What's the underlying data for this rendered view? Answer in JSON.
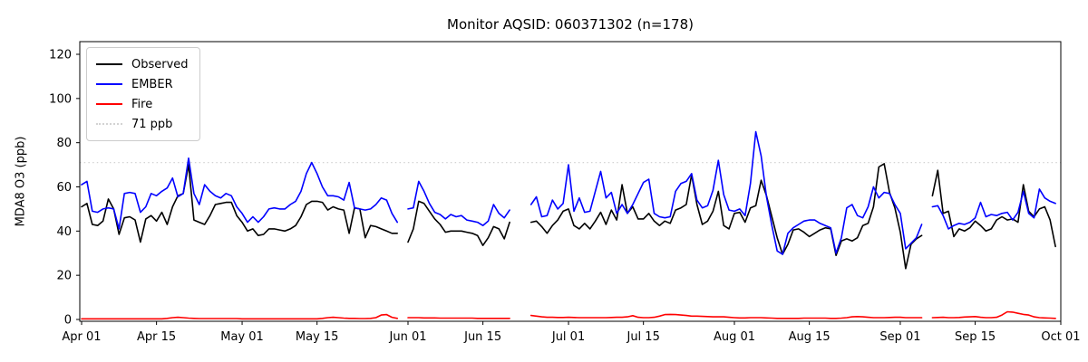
{
  "title": "Monitor AQSID: 060371302 (n=178)",
  "chart_data": {
    "type": "line",
    "title": "Monitor AQSID: 060371302 (n=178)",
    "xlabel": "",
    "ylabel": "MDA8 O3 (ppb)",
    "ylim": [
      0,
      126
    ],
    "y_ticks": [
      0,
      20,
      40,
      60,
      80,
      100,
      120
    ],
    "x_ticks": [
      {
        "label": "Apr 01",
        "day": 0
      },
      {
        "label": "Apr 15",
        "day": 14
      },
      {
        "label": "May 01",
        "day": 30
      },
      {
        "label": "May 15",
        "day": 44
      },
      {
        "label": "Jun 01",
        "day": 61
      },
      {
        "label": "Jun 15",
        "day": 75
      },
      {
        "label": "Jul 01",
        "day": 91
      },
      {
        "label": "Jul 15",
        "day": 105
      },
      {
        "label": "Aug 01",
        "day": 122
      },
      {
        "label": "Aug 15",
        "day": 136
      },
      {
        "label": "Sep 01",
        "day": 153
      },
      {
        "label": "Sep 15",
        "day": 167
      },
      {
        "label": "Oct 01",
        "day": 183
      }
    ],
    "n_days": 183,
    "grid": false,
    "legend_position": "upper left",
    "threshold": {
      "value": 71,
      "label": "71 ppb",
      "color": "#d3d3d3",
      "style": "dotted"
    },
    "legend_items": [
      {
        "label": "Observed",
        "color": "#000000",
        "style": "solid"
      },
      {
        "label": "EMBER",
        "color": "#0000ff",
        "style": "solid"
      },
      {
        "label": "Fire",
        "color": "#ff0000",
        "style": "solid"
      },
      {
        "label": "71 ppb",
        "color": "#d3d3d3",
        "style": "dotted"
      }
    ],
    "series": [
      {
        "name": "Observed",
        "color": "#000000",
        "values": [
          51,
          52.5,
          43,
          42.5,
          44.5,
          54.5,
          50,
          38.5,
          46,
          46.5,
          45,
          35,
          45.5,
          47,
          44.5,
          48.5,
          43,
          51,
          56,
          57,
          70,
          45,
          44,
          43,
          47,
          52,
          52.5,
          53,
          53,
          47,
          44,
          40,
          41,
          38,
          38.5,
          41,
          41,
          40.5,
          40,
          41,
          42.5,
          46.5,
          52,
          53.5,
          53.5,
          53,
          49.5,
          51,
          50,
          49.5,
          39,
          50.5,
          50,
          37,
          42.5,
          42,
          41,
          40,
          39,
          39,
          null,
          35,
          41,
          53.5,
          52.5,
          49,
          45.5,
          43,
          39.5,
          40,
          40,
          40,
          39.5,
          39,
          38,
          33.5,
          37,
          42,
          41,
          36.5,
          44,
          null,
          null,
          null,
          44,
          44.5,
          42,
          39,
          42.5,
          45,
          49,
          50,
          42.5,
          41,
          43.5,
          41,
          44.5,
          48.5,
          43,
          49.5,
          45,
          61,
          48,
          51,
          45.5,
          45.5,
          48,
          44.5,
          42.5,
          44.5,
          43.5,
          49.5,
          50.5,
          52,
          65.5,
          52,
          43,
          44.5,
          49,
          58,
          42.5,
          41,
          48,
          48.5,
          44,
          50.5,
          51.5,
          63,
          56,
          46.5,
          37,
          29.5,
          34,
          40.5,
          41,
          39.5,
          37.5,
          39,
          40.5,
          41.5,
          41,
          29,
          35.5,
          36.5,
          35.5,
          37,
          42.5,
          43.5,
          51,
          69,
          70.5,
          57.5,
          50.5,
          39.5,
          23,
          34,
          36.5,
          38,
          null,
          56,
          67.5,
          48,
          49,
          37.5,
          41,
          40,
          41.5,
          44.5,
          42.5,
          40,
          41,
          45,
          46.5,
          45,
          45.5,
          44,
          61,
          49,
          46.5,
          50,
          51,
          45,
          33
        ]
      },
      {
        "name": "EMBER",
        "color": "#0000ff",
        "values": [
          61,
          62.5,
          49,
          48.5,
          50,
          50.5,
          50,
          41,
          57,
          57.5,
          57,
          48.5,
          51,
          57,
          56,
          58,
          59.5,
          64,
          55.5,
          57,
          73,
          57,
          52,
          61,
          58,
          56,
          55,
          57,
          56,
          51,
          48,
          44,
          46.5,
          44,
          46.5,
          50,
          50.5,
          50,
          50,
          52,
          53.5,
          58,
          66,
          71,
          66,
          60,
          56,
          56,
          55.5,
          54,
          62,
          50.5,
          50,
          49.5,
          50,
          52,
          55,
          54,
          48,
          44,
          null,
          50,
          50.5,
          62.5,
          58,
          52.5,
          48.5,
          47.5,
          45.5,
          47.5,
          46.5,
          47,
          45,
          44.5,
          44,
          42.5,
          44.5,
          52,
          48,
          46,
          49.5,
          null,
          null,
          null,
          52,
          55.5,
          46.5,
          47,
          54,
          50,
          52.5,
          70,
          49,
          55,
          48.5,
          49,
          58,
          67,
          55,
          57.5,
          48,
          52,
          48,
          52,
          57,
          62,
          63.5,
          48,
          46.5,
          46,
          46.5,
          58,
          61.5,
          62.5,
          66,
          54,
          50.5,
          51.5,
          58.5,
          72,
          56.5,
          49.5,
          49,
          50,
          47,
          61.5,
          85,
          74,
          55.5,
          42.5,
          31,
          29.5,
          39,
          41.5,
          43,
          44.5,
          45,
          45,
          43.5,
          42.5,
          41.5,
          30,
          37,
          50.5,
          52,
          47,
          46,
          51,
          60,
          55,
          57.5,
          57,
          52,
          48,
          32,
          34.5,
          37,
          43,
          null,
          51,
          51.5,
          47,
          41,
          42.5,
          43.5,
          43,
          44,
          46,
          53,
          46.5,
          47.5,
          47,
          48,
          48.5,
          45,
          48.5,
          58,
          48,
          46,
          59,
          55,
          53.5,
          52.5
        ]
      },
      {
        "name": "Fire",
        "color": "#ff0000",
        "values": [
          0.3,
          0.3,
          0.3,
          0.3,
          0.3,
          0.3,
          0.3,
          0.3,
          0.3,
          0.3,
          0.3,
          0.3,
          0.3,
          0.3,
          0.3,
          0.3,
          0.5,
          0.8,
          1,
          0.8,
          0.6,
          0.5,
          0.4,
          0.4,
          0.4,
          0.4,
          0.4,
          0.4,
          0.4,
          0.4,
          0.3,
          0.3,
          0.3,
          0.3,
          0.3,
          0.3,
          0.3,
          0.3,
          0.3,
          0.3,
          0.3,
          0.3,
          0.3,
          0.3,
          0.3,
          0.5,
          0.8,
          1,
          0.8,
          0.6,
          0.5,
          0.5,
          0.4,
          0.4,
          0.5,
          0.8,
          2,
          2.2,
          1,
          0.5,
          null,
          0.8,
          0.8,
          0.8,
          0.7,
          0.7,
          0.7,
          0.6,
          0.6,
          0.6,
          0.6,
          0.6,
          0.6,
          0.6,
          0.5,
          0.5,
          0.5,
          0.5,
          0.5,
          0.5,
          0.5,
          null,
          null,
          null,
          1.8,
          1.5,
          1.2,
          1,
          1,
          0.9,
          0.9,
          1,
          0.9,
          0.8,
          0.8,
          0.8,
          0.8,
          0.8,
          0.8,
          0.9,
          1,
          1,
          1.2,
          1.7,
          1,
          0.8,
          0.8,
          1,
          1.5,
          2.2,
          2.3,
          2.2,
          2,
          1.8,
          1.5,
          1.5,
          1.4,
          1.3,
          1.2,
          1.2,
          1.2,
          1,
          0.8,
          0.7,
          0.7,
          0.8,
          0.8,
          0.8,
          0.7,
          0.6,
          0.5,
          0.5,
          0.5,
          0.5,
          0.5,
          0.6,
          0.6,
          0.6,
          0.6,
          0.6,
          0.5,
          0.5,
          0.6,
          0.8,
          1.2,
          1.3,
          1.2,
          1,
          0.8,
          0.8,
          0.8,
          0.9,
          1,
          1,
          0.8,
          0.8,
          0.8,
          0.8,
          null,
          0.8,
          0.9,
          1,
          0.8,
          0.8,
          0.9,
          1.1,
          1.2,
          1.3,
          1,
          0.8,
          0.8,
          1,
          2,
          3.5,
          3.3,
          2.8,
          2.3,
          2,
          1.2,
          0.8,
          0.7,
          0.6,
          0.5
        ]
      }
    ]
  }
}
